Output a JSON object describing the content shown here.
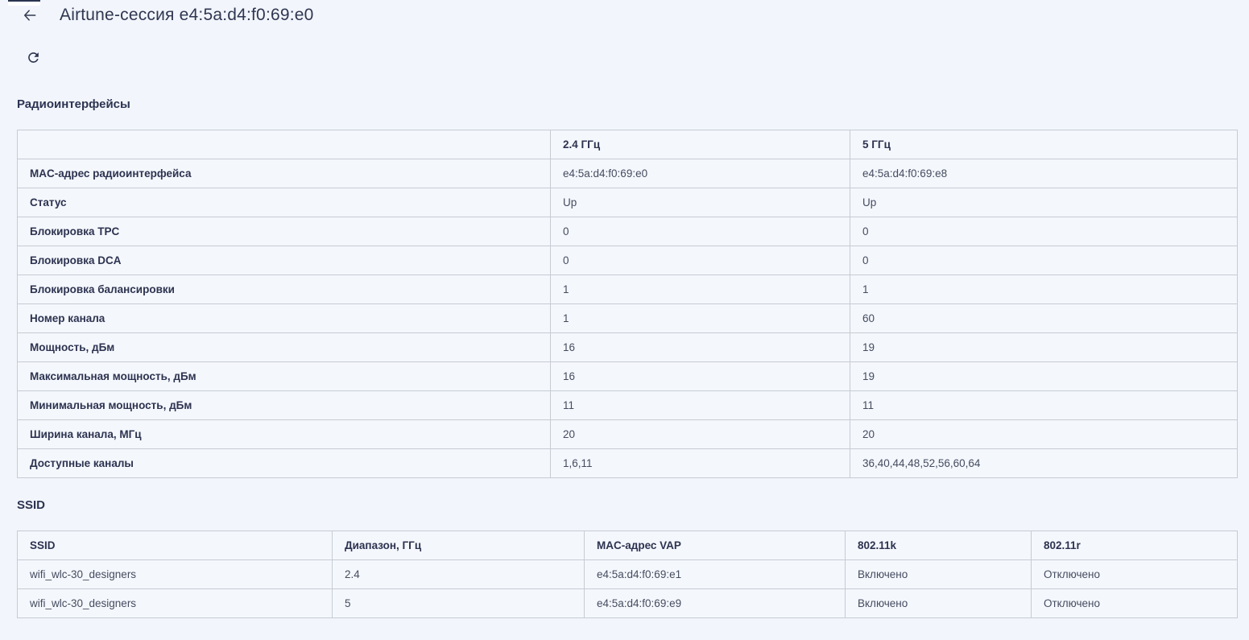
{
  "colors": {
    "page_background": "#f2f5fb",
    "text_primary": "#2d3452",
    "text_value": "#454c60",
    "table_border": "#c7cbd3",
    "artifact_dark": "#2a3450"
  },
  "header": {
    "back_icon": "arrow-left",
    "title": "Airtune-сессия e4:5a:d4:f0:69:e0"
  },
  "toolbar": {
    "refresh_icon": "refresh"
  },
  "radio_section": {
    "title": "Радиоинтерфейсы",
    "columns": [
      "",
      "2.4 ГГц",
      "5 ГГц"
    ],
    "rows": [
      {
        "label": "MAC-адрес радиоинтерфейса",
        "band_2_4": "e4:5a:d4:f0:69:e0",
        "band_5": "e4:5a:d4:f0:69:e8"
      },
      {
        "label": "Статус",
        "band_2_4": "Up",
        "band_5": "Up"
      },
      {
        "label": "Блокировка TPC",
        "band_2_4": "0",
        "band_5": "0"
      },
      {
        "label": "Блокировка DCA",
        "band_2_4": "0",
        "band_5": "0"
      },
      {
        "label": "Блокировка балансировки",
        "band_2_4": "1",
        "band_5": "1"
      },
      {
        "label": "Номер канала",
        "band_2_4": "1",
        "band_5": "60"
      },
      {
        "label": "Мощность, дБм",
        "band_2_4": "16",
        "band_5": "19"
      },
      {
        "label": "Максимальная мощность, дБм",
        "band_2_4": "16",
        "band_5": "19"
      },
      {
        "label": "Минимальная мощность, дБм",
        "band_2_4": "11",
        "band_5": "11"
      },
      {
        "label": "Ширина канала, МГц",
        "band_2_4": "20",
        "band_5": "20"
      },
      {
        "label": "Доступные каналы",
        "band_2_4": "1,6,11",
        "band_5": "36,40,44,48,52,56,60,64"
      }
    ]
  },
  "ssid_section": {
    "title": "SSID",
    "columns": [
      "SSID",
      "Диапазон, ГГц",
      "MAC-адрес VAP",
      "802.11k",
      "802.11r"
    ],
    "rows": [
      [
        "wifi_wlc-30_designers",
        "2.4",
        "e4:5a:d4:f0:69:e1",
        "Включено",
        "Отключено"
      ],
      [
        "wifi_wlc-30_designers",
        "5",
        "e4:5a:d4:f0:69:e9",
        "Включено",
        "Отключено"
      ]
    ]
  }
}
